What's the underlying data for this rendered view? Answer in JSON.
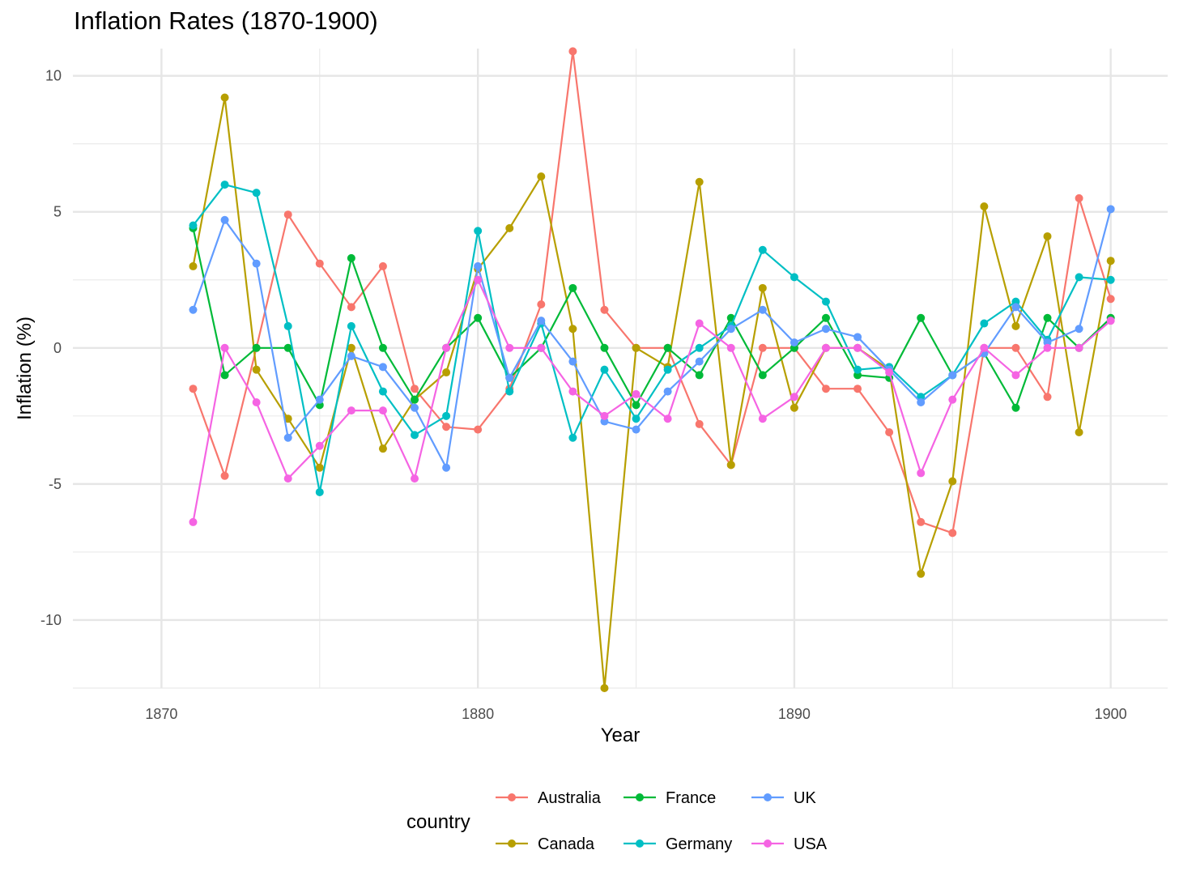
{
  "chart_data": {
    "type": "line",
    "title": "Inflation Rates (1870-1900)",
    "xlabel": "Year",
    "ylabel": "Inflation (%)",
    "xlim": [
      1867.2,
      1901.8
    ],
    "ylim": [
      -12.5,
      11.0
    ],
    "x_ticks": [
      1870,
      1880,
      1890,
      1900
    ],
    "y_ticks": [
      -10,
      -5,
      0,
      5,
      10
    ],
    "x_tick_labels": [
      "1870",
      "1880",
      "1890",
      "1900"
    ],
    "y_tick_labels": [
      "-10",
      "-5",
      "0",
      "5",
      "10"
    ],
    "grid": true,
    "legend": {
      "title": "country",
      "position": "bottom"
    },
    "x": [
      1871,
      1872,
      1873,
      1874,
      1875,
      1876,
      1877,
      1878,
      1879,
      1880,
      1881,
      1882,
      1883,
      1884,
      1885,
      1886,
      1887,
      1888,
      1889,
      1890,
      1891,
      1892,
      1893,
      1894,
      1895,
      1896,
      1897,
      1898,
      1899,
      1900
    ],
    "series": [
      {
        "name": "Australia",
        "color": "#F8766D",
        "values": [
          -1.5,
          -4.7,
          0.0,
          4.9,
          3.1,
          1.5,
          3.0,
          -1.5,
          -2.9,
          -3.0,
          -1.5,
          1.6,
          10.9,
          1.4,
          0.0,
          0.0,
          -2.8,
          -4.3,
          0.0,
          0.0,
          -1.5,
          -1.5,
          -3.1,
          -6.4,
          -6.8,
          0.0,
          0.0,
          -1.8,
          5.5,
          1.8
        ]
      },
      {
        "name": "Canada",
        "color": "#B79F00",
        "values": [
          3.0,
          9.2,
          -0.8,
          -2.6,
          -4.4,
          0.0,
          -3.7,
          -1.9,
          -0.9,
          2.9,
          4.4,
          6.3,
          0.7,
          -12.5,
          0.0,
          -0.7,
          6.1,
          -4.3,
          2.2,
          -2.2,
          0.0,
          0.0,
          -0.8,
          -8.3,
          -4.9,
          5.2,
          0.8,
          4.1,
          -3.1,
          3.2
        ]
      },
      {
        "name": "France",
        "color": "#00BA38",
        "values": [
          4.4,
          -1.0,
          0.0,
          0.0,
          -2.1,
          3.3,
          0.0,
          -1.9,
          0.0,
          1.1,
          -1.1,
          0.0,
          2.2,
          0.0,
          -2.1,
          0.0,
          -1.0,
          1.1,
          -1.0,
          0.0,
          1.1,
          -1.0,
          -1.1,
          1.1,
          -1.0,
          -0.2,
          -2.2,
          1.1,
          0.0,
          1.1
        ]
      },
      {
        "name": "Germany",
        "color": "#00BFC4",
        "values": [
          4.5,
          6.0,
          5.7,
          0.8,
          -5.3,
          0.8,
          -1.6,
          -3.2,
          -2.5,
          4.3,
          -1.6,
          0.9,
          -3.3,
          -0.8,
          -2.6,
          -0.8,
          0.0,
          0.8,
          3.6,
          2.6,
          1.7,
          -0.8,
          -0.7,
          -1.8,
          -1.0,
          0.9,
          1.7,
          0.3,
          2.6,
          2.5
        ]
      },
      {
        "name": "UK",
        "color": "#619CFF",
        "values": [
          1.4,
          4.7,
          3.1,
          -3.3,
          -1.9,
          -0.3,
          -0.7,
          -2.2,
          -4.4,
          3.0,
          -1.1,
          1.0,
          -0.5,
          -2.7,
          -3.0,
          -1.6,
          -0.5,
          0.7,
          1.4,
          0.2,
          0.7,
          0.4,
          -0.8,
          -2.0,
          -1.0,
          -0.2,
          1.5,
          0.2,
          0.7,
          5.1
        ]
      },
      {
        "name": "USA",
        "color": "#F564E3",
        "values": [
          -6.4,
          0.0,
          -2.0,
          -4.8,
          -3.6,
          -2.3,
          -2.3,
          -4.8,
          0.0,
          2.5,
          0.0,
          0.0,
          -1.6,
          -2.5,
          -1.7,
          -2.6,
          0.9,
          0.0,
          -2.6,
          -1.8,
          0.0,
          0.0,
          -0.9,
          -4.6,
          -1.9,
          0.0,
          -1.0,
          0.0,
          0.0,
          1.0
        ]
      }
    ]
  }
}
